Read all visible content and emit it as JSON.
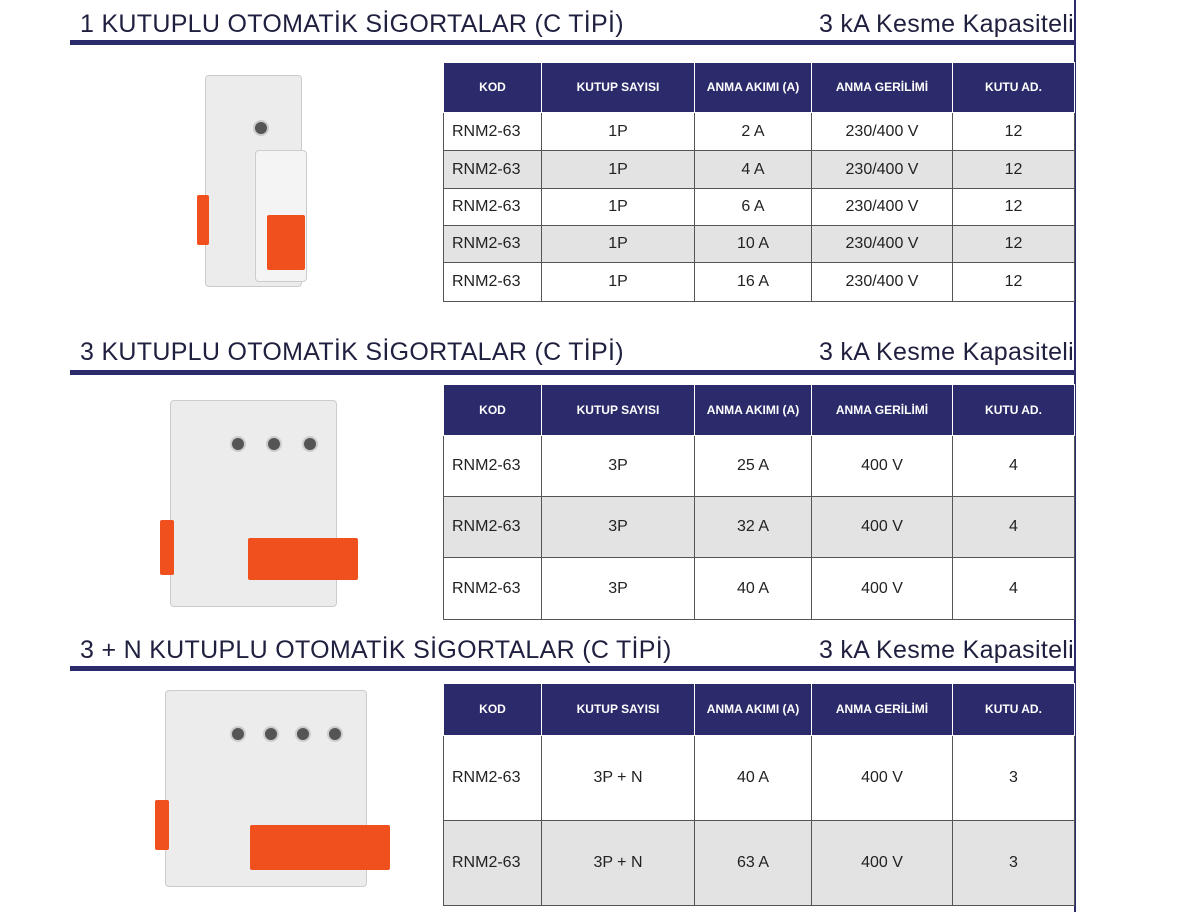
{
  "headers": [
    "KOD",
    "KUTUP SAYISI",
    "ANMA AKIMI (A)",
    "ANMA GERİLİMİ",
    "KUTU AD."
  ],
  "sections": [
    {
      "title": "1 KUTUPLU OTOMATİK SİGORTALAR (C TİPİ)",
      "capacity": "3 kA  Kesme Kapasiteli",
      "rows": [
        [
          "RNM2-63",
          "1P",
          "2 A",
          "230/400 V",
          "12"
        ],
        [
          "RNM2-63",
          "1P",
          "4 A",
          "230/400 V",
          "12"
        ],
        [
          "RNM2-63",
          "1P",
          "6 A",
          "230/400 V",
          "12"
        ],
        [
          "RNM2-63",
          "1P",
          "10 A",
          "230/400 V",
          "12"
        ],
        [
          "RNM2-63",
          "1P",
          "16 A",
          "230/400 V",
          "12"
        ]
      ]
    },
    {
      "title": "3 KUTUPLU OTOMATİK SİGORTALAR (C TİPİ)",
      "capacity": "3 kA  Kesme Kapasiteli",
      "rows": [
        [
          "RNM2-63",
          "3P",
          "25 A",
          "400 V",
          "4"
        ],
        [
          "RNM2-63",
          "3P",
          "32 A",
          "400 V",
          "4"
        ],
        [
          "RNM2-63",
          "3P",
          "40 A",
          "400 V",
          "4"
        ]
      ]
    },
    {
      "title": "3 + N KUTUPLU OTOMATİK SİGORTALAR (C TİPİ)",
      "capacity": "3 kA  Kesme Kapasiteli",
      "rows": [
        [
          "RNM2-63",
          "3P + N",
          "40 A",
          "400 V",
          "3"
        ],
        [
          "RNM2-63",
          "3P + N",
          "63 A",
          "400 V",
          "3"
        ]
      ]
    }
  ],
  "colors": {
    "navy": "#2b2a6b",
    "accent_red": "#f0501e"
  }
}
